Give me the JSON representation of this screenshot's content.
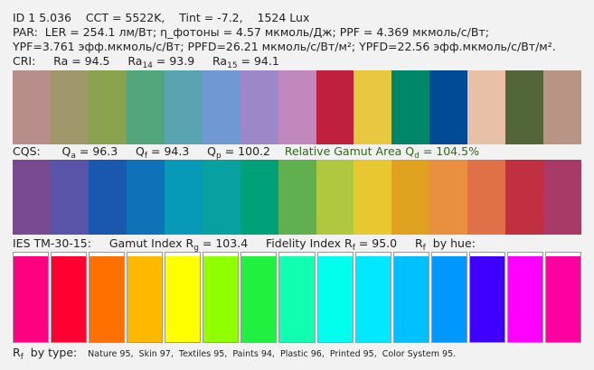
{
  "lines": [
    {
      "segments": [
        {
          "text": "ID 1 5.036    CCT = 5522K,    Tint = -7.2,    1524 Lux"
        }
      ]
    },
    {
      "segments": [
        {
          "text": "PAR:  LER = 254.1 лм/Вт; η_фотоны = 4.57 мкмоль/Дж; PPF = 4.369 мкмоль/с/Вт;"
        }
      ]
    },
    {
      "segments": [
        {
          "text": "YPF=3.761 эфф.мкмоль/с/Вт; PPFD=26.21 мкмоль/с/Вт/м²; YPFD=22.56 эфф.мкмоль/с/Вт/м²."
        }
      ]
    },
    {
      "segments": [
        {
          "text": "CRI:     Ra = 94.5     Ra"
        },
        {
          "text": "14",
          "sub": true
        },
        {
          "text": " = 93.9     Ra"
        },
        {
          "text": "15",
          "sub": true
        },
        {
          "text": " = 94.1"
        }
      ]
    }
  ],
  "cri_swatches": [
    "#b88e8a",
    "#a0986a",
    "#88a24e",
    "#52a47a",
    "#5aa3b0",
    "#7098d2",
    "#9c88c8",
    "#c088bc",
    "#c0203c",
    "#e8c840",
    "#00876a",
    "#004a96",
    "#e8c0a8",
    "#52663a",
    "#b89484"
  ],
  "cqs_line": {
    "segments": [
      {
        "text": "CQS:      Q"
      },
      {
        "text": "a",
        "sub": true
      },
      {
        "text": " = 96.3     Q"
      },
      {
        "text": "f",
        "sub": true
      },
      {
        "text": " = 94.3     Q"
      },
      {
        "text": "p",
        "sub": true
      },
      {
        "text": " = 100.2    "
      },
      {
        "text": "Relative Gamut Area Q",
        "color": "#2a6a10"
      },
      {
        "text": "d",
        "sub": true,
        "color": "#2a6a10"
      },
      {
        "text": " = 104.5%",
        "color": "#2a6a10"
      }
    ]
  },
  "cqs_swatches": [
    "#7a4a90",
    "#5a54a8",
    "#1a58b0",
    "#0f72b8",
    "#0898b8",
    "#08a0a0",
    "#00a078",
    "#60b050",
    "#b0c840",
    "#e8c830",
    "#e0a020",
    "#e89040",
    "#e07048",
    "#c03040",
    "#a83a68"
  ],
  "ies_line": {
    "segments": [
      {
        "text": "IES TM-30-15:     Gamut Index R"
      },
      {
        "text": "g",
        "sub": true
      },
      {
        "text": " = 103.4     Fidelity Index R"
      },
      {
        "text": "f",
        "sub": true
      },
      {
        "text": " = 95.0     R"
      },
      {
        "text": "f",
        "sub": true
      },
      {
        "text": "  by hue:"
      }
    ]
  },
  "hue_bars": [
    "#ff0080",
    "#ff0030",
    "#ff7000",
    "#ffb800",
    "#ffff00",
    "#90ff00",
    "#20f040",
    "#10ffb0",
    "#00ffee",
    "#00e8ff",
    "#00c0ff",
    "#0098ff",
    "#4000ff",
    "#ff00ff",
    "#ff00a0"
  ],
  "type_line": {
    "segments": [
      {
        "text": "R"
      },
      {
        "text": "f",
        "sub": true
      },
      {
        "text": "  by type:   "
      },
      {
        "text": "Nature 95,  Skin 97,  Textiles 95,  Paints 94,  Plastic 96,  Printed 95,  Color System 95.",
        "small": true
      }
    ]
  }
}
